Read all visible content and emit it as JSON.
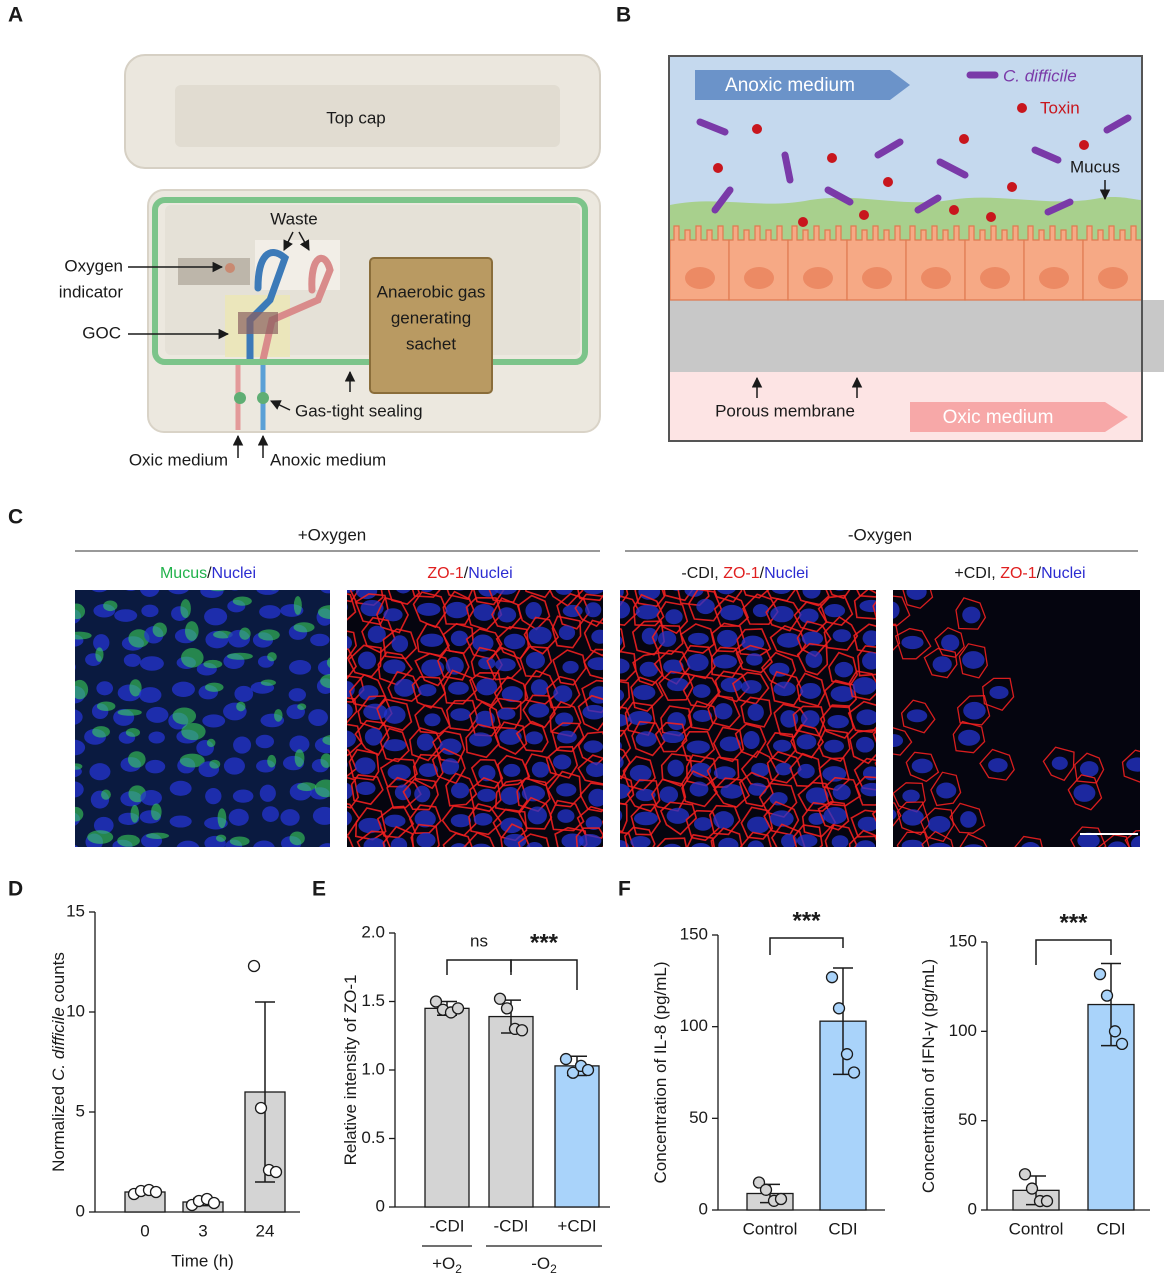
{
  "panel_labels": [
    "A",
    "B",
    "C",
    "D",
    "E",
    "F"
  ],
  "panel_a": {
    "top_cap": "Top cap",
    "waste": "Waste",
    "oxygen_indicator": [
      "Oxygen",
      "indicator"
    ],
    "goc": "GOC",
    "sachet": [
      "Anaerobic gas",
      "generating",
      "sachet"
    ],
    "sealing": "Gas-tight sealing",
    "oxic": "Oxic medium",
    "anoxic": "Anoxic medium"
  },
  "panel_b": {
    "anoxic": "Anoxic medium",
    "c_difficile": "C. difficile",
    "toxin": "Toxin",
    "mucus": "Mucus",
    "membrane": "Porous membrane",
    "oxic": "Oxic medium"
  },
  "panel_c": {
    "groups": [
      "+Oxygen",
      "-Oxygen"
    ],
    "captions": [
      [
        {
          "text": "Mucus",
          "color": "#21b24b"
        },
        {
          "text": "/",
          "color": "#1a1a1a"
        },
        {
          "text": "Nuclei",
          "color": "#2b2bd1"
        }
      ],
      [
        {
          "text": "ZO-1",
          "color": "#e01f1f"
        },
        {
          "text": "/",
          "color": "#1a1a1a"
        },
        {
          "text": "Nuclei",
          "color": "#2b2bd1"
        }
      ],
      [
        {
          "text": "-CDI, ",
          "color": "#1a1a1a"
        },
        {
          "text": "ZO-1",
          "color": "#e01f1f"
        },
        {
          "text": "/",
          "color": "#1a1a1a"
        },
        {
          "text": "Nuclei",
          "color": "#2b2bd1"
        }
      ],
      [
        {
          "text": "+CDI, ",
          "color": "#1a1a1a"
        },
        {
          "text": "ZO-1",
          "color": "#e01f1f"
        },
        {
          "text": "/",
          "color": "#1a1a1a"
        },
        {
          "text": "Nuclei",
          "color": "#2b2bd1"
        }
      ]
    ]
  },
  "chart_data": [
    {
      "type": "bar",
      "categories": [
        "0",
        "3",
        "24"
      ],
      "values": [
        1.0,
        0.5,
        6.0
      ],
      "errors": [
        0.12,
        0.18,
        4.5
      ],
      "points": [
        [
          0.9,
          1.05,
          1.1,
          1.0
        ],
        [
          0.35,
          0.55,
          0.65,
          0.45
        ],
        [
          12.3,
          5.2,
          2.1,
          2.0
        ]
      ],
      "colors": [
        "#d4d4d4",
        "#d4d4d4",
        "#d4d4d4"
      ],
      "point_color": "#ffffff",
      "ylim": [
        0,
        15
      ],
      "yticks": [
        0,
        5,
        10,
        15
      ],
      "ylabel": [
        {
          "text": "Normalized"
        },
        {
          "text": "C. difficile",
          "italic": true
        },
        {
          "text": "counts"
        }
      ],
      "xlabel": "Time (h)"
    },
    {
      "type": "bar",
      "categories": [
        "-CDI",
        "-CDI",
        "+CDI"
      ],
      "values": [
        1.45,
        1.39,
        1.03
      ],
      "errors": [
        0.05,
        0.12,
        0.07
      ],
      "points": [
        [
          1.5,
          1.44,
          1.42,
          1.45
        ],
        [
          1.52,
          1.45,
          1.3,
          1.29
        ],
        [
          1.08,
          0.98,
          1.03,
          1.0
        ]
      ],
      "colors": [
        "#d4d4d4",
        "#d4d4d4",
        "#a9d3fa"
      ],
      "point_color": null,
      "ylim": [
        0,
        2
      ],
      "yticks": [
        0,
        0.5,
        {
          "value": 1,
          "label": "1.0"
        },
        1.5,
        {
          "value": 2,
          "label": "2.0"
        }
      ],
      "ylabel": [
        {
          "text": "Relative intensity of ZO-1"
        }
      ],
      "groups": [
        {
          "text": "+O",
          "sub": "2"
        },
        {
          "text": "-O",
          "sub": "2"
        }
      ],
      "annotations": [
        "ns",
        "***"
      ]
    },
    {
      "type": "bar",
      "categories": [
        "Control",
        "CDI"
      ],
      "values": [
        9,
        103
      ],
      "errors": [
        5,
        29
      ],
      "points": [
        [
          15,
          11,
          5,
          6
        ],
        [
          127,
          110,
          85,
          75
        ]
      ],
      "colors": [
        "#d4d4d4",
        "#a9d3fa"
      ],
      "point_color": null,
      "ylim": [
        0,
        150
      ],
      "yticks": [
        0,
        50,
        100,
        150
      ],
      "ylabel": [
        {
          "text": "Concentration of IL-8 (pg/mL)"
        }
      ],
      "annotations": [
        "***"
      ]
    },
    {
      "type": "bar",
      "categories": [
        "Control",
        "CDI"
      ],
      "values": [
        11,
        115
      ],
      "errors": [
        8,
        23
      ],
      "points": [
        [
          20,
          12,
          5,
          5
        ],
        [
          132,
          120,
          100,
          93
        ]
      ],
      "colors": [
        "#d4d4d4",
        "#a9d3fa"
      ],
      "point_color": null,
      "ylim": [
        0,
        150
      ],
      "yticks": [
        0,
        50,
        100,
        150
      ],
      "ylabel": [
        {
          "text": "Concentration of IFN-γ (pg/mL)"
        }
      ],
      "annotations": [
        "***"
      ]
    }
  ]
}
